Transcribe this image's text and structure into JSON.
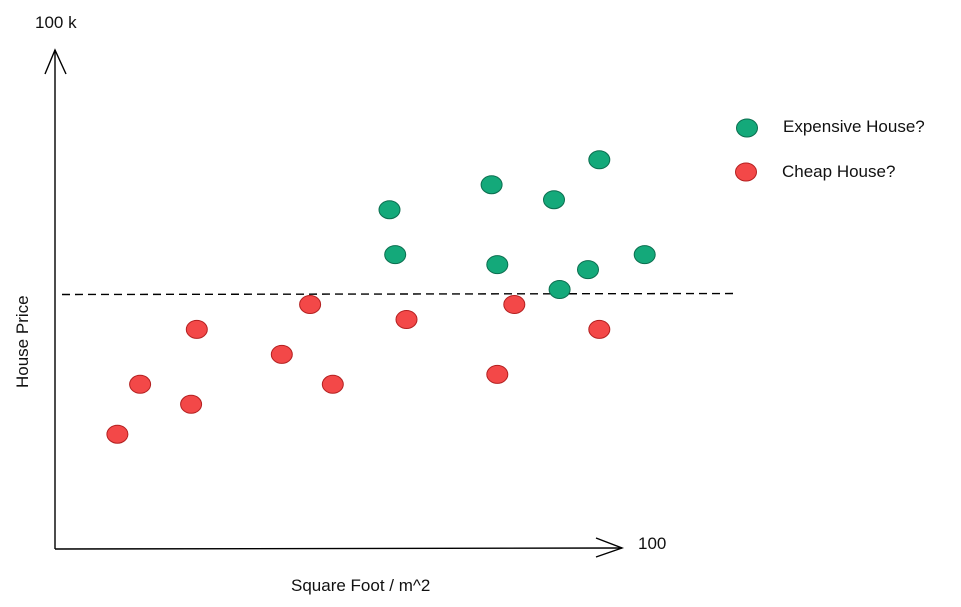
{
  "chart_data": {
    "type": "scatter",
    "xlabel": "Square Foot / m^2",
    "ylabel": "House Price",
    "x_end_label": "100",
    "y_end_label": "100 k",
    "xlim": [
      0,
      100
    ],
    "ylim": [
      0,
      100
    ],
    "threshold": 51,
    "grid": false,
    "legend_position": "top-right",
    "series": [
      {
        "name": "Expensive House?",
        "color": "#14a97a",
        "stroke": "#0b6e4f",
        "points": [
          {
            "x": 59,
            "y": 68
          },
          {
            "x": 60,
            "y": 59
          },
          {
            "x": 77,
            "y": 73
          },
          {
            "x": 78,
            "y": 57
          },
          {
            "x": 88,
            "y": 70
          },
          {
            "x": 89,
            "y": 52
          },
          {
            "x": 94,
            "y": 56
          },
          {
            "x": 96,
            "y": 78
          },
          {
            "x": 104,
            "y": 59
          }
        ]
      },
      {
        "name": "Cheap House?",
        "color": "#f34848",
        "stroke": "#b42020",
        "points": [
          {
            "x": 11,
            "y": 23
          },
          {
            "x": 15,
            "y": 33
          },
          {
            "x": 24,
            "y": 29
          },
          {
            "x": 25,
            "y": 44
          },
          {
            "x": 40,
            "y": 39
          },
          {
            "x": 45,
            "y": 49
          },
          {
            "x": 49,
            "y": 33
          },
          {
            "x": 62,
            "y": 46
          },
          {
            "x": 78,
            "y": 35
          },
          {
            "x": 81,
            "y": 49
          },
          {
            "x": 96,
            "y": 44
          }
        ]
      }
    ]
  }
}
